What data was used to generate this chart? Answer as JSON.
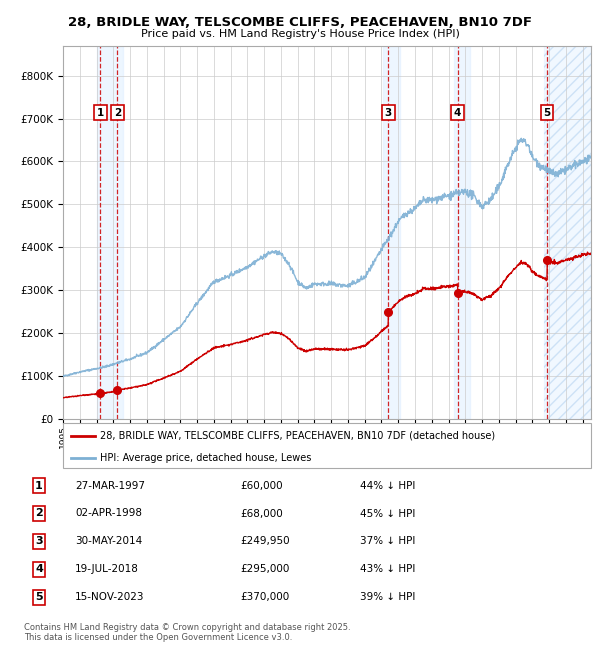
{
  "title_line1": "28, BRIDLE WAY, TELSCOMBE CLIFFS, PEACEHAVEN, BN10 7DF",
  "title_line2": "Price paid vs. HM Land Registry's House Price Index (HPI)",
  "xlim_start": 1995.0,
  "xlim_end": 2026.5,
  "ylim_min": 0,
  "ylim_max": 870000,
  "yticks": [
    0,
    100000,
    200000,
    300000,
    400000,
    500000,
    600000,
    700000,
    800000
  ],
  "ytick_labels": [
    "£0",
    "£100K",
    "£200K",
    "£300K",
    "£400K",
    "£500K",
    "£600K",
    "£700K",
    "£800K"
  ],
  "xticks": [
    1995,
    1996,
    1997,
    1998,
    1999,
    2000,
    2001,
    2002,
    2003,
    2004,
    2005,
    2006,
    2007,
    2008,
    2009,
    2010,
    2011,
    2012,
    2013,
    2014,
    2015,
    2016,
    2017,
    2018,
    2019,
    2020,
    2021,
    2022,
    2023,
    2024,
    2025,
    2026
  ],
  "sale_dates_x": [
    1997.23,
    1998.25,
    2014.41,
    2018.54,
    2023.88
  ],
  "sale_prices_y": [
    60000,
    68000,
    249950,
    295000,
    370000
  ],
  "sale_labels": [
    "1",
    "2",
    "3",
    "4",
    "5"
  ],
  "legend_label_red": "28, BRIDLE WAY, TELSCOMBE CLIFFS, PEACEHAVEN, BN10 7DF (detached house)",
  "legend_label_blue": "HPI: Average price, detached house, Lewes",
  "table_data": [
    [
      "1",
      "27-MAR-1997",
      "£60,000",
      "44% ↓ HPI"
    ],
    [
      "2",
      "02-APR-1998",
      "£68,000",
      "45% ↓ HPI"
    ],
    [
      "3",
      "30-MAY-2014",
      "£249,950",
      "37% ↓ HPI"
    ],
    [
      "4",
      "19-JUL-2018",
      "£295,000",
      "43% ↓ HPI"
    ],
    [
      "5",
      "15-NOV-2023",
      "£370,000",
      "39% ↓ HPI"
    ]
  ],
  "footnote": "Contains HM Land Registry data © Crown copyright and database right 2025.\nThis data is licensed under the Open Government Licence v3.0.",
  "red_color": "#cc0000",
  "blue_color": "#7db0d4",
  "bg_color": "#ffffff",
  "grid_color": "#cccccc",
  "shade_color": "#ddeeff"
}
